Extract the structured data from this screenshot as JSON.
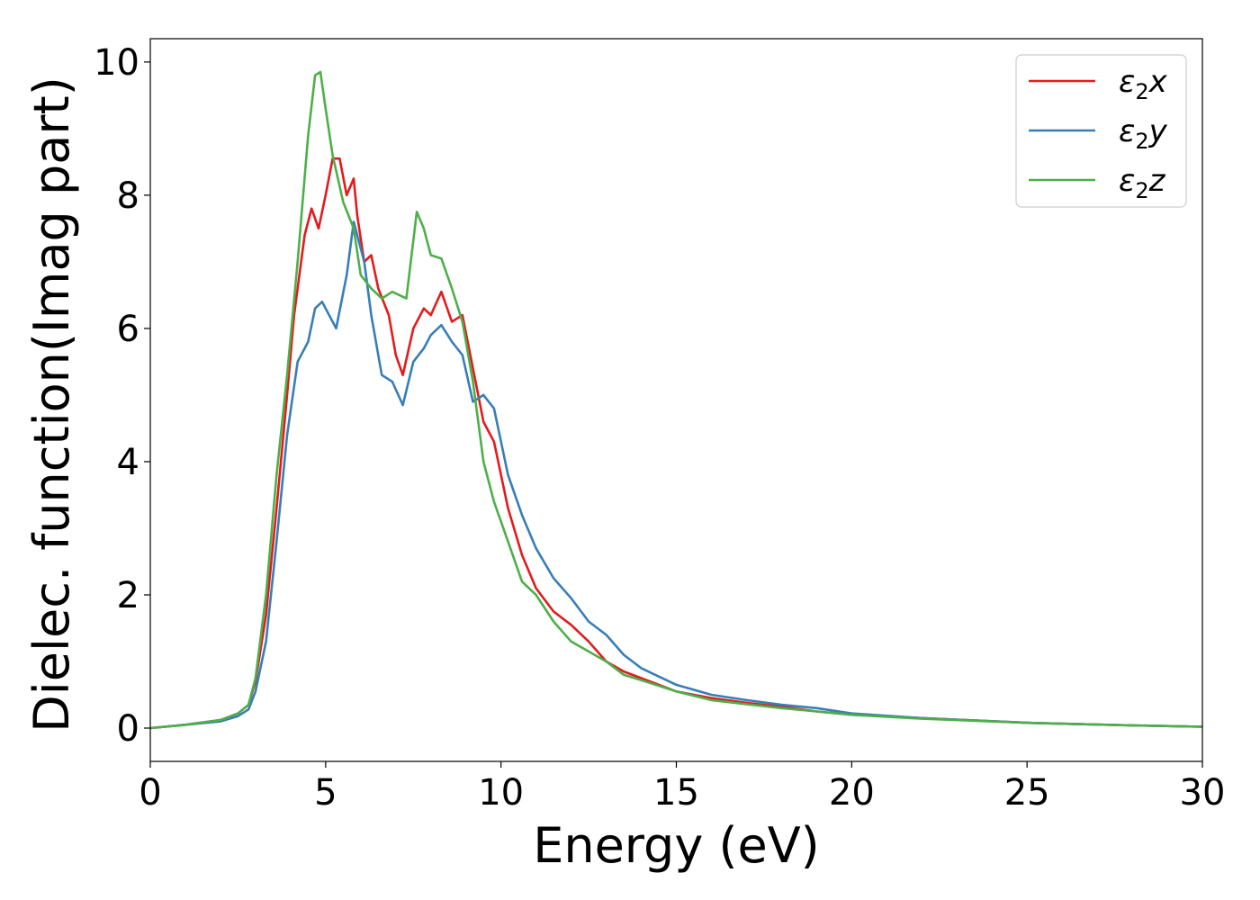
{
  "chart_data": {
    "type": "line",
    "title": "",
    "xlabel": "Energy (eV)",
    "ylabel": "Dielec. function(Imag part)",
    "xlim": [
      0,
      30
    ],
    "ylim": [
      -0.5,
      10.35
    ],
    "xticks": [
      0,
      5,
      10,
      15,
      20,
      25,
      30
    ],
    "yticks": [
      0,
      2,
      4,
      6,
      8,
      10
    ],
    "grid": false,
    "legend_position": "top-right",
    "series": [
      {
        "name": "ε2x",
        "legend": {
          "base": "ε",
          "sub": "2",
          "var": "x"
        },
        "color": "#e41a1c",
        "x": [
          0,
          1,
          2,
          2.5,
          2.8,
          3.0,
          3.3,
          3.6,
          3.9,
          4.1,
          4.4,
          4.6,
          4.8,
          5.0,
          5.2,
          5.4,
          5.6,
          5.8,
          5.9,
          6.1,
          6.3,
          6.5,
          6.8,
          7.0,
          7.2,
          7.5,
          7.8,
          8.0,
          8.3,
          8.6,
          8.9,
          9.2,
          9.5,
          9.8,
          10.2,
          10.6,
          11.0,
          11.5,
          12.0,
          12.5,
          13.0,
          13.5,
          14.0,
          15.0,
          16.0,
          17.0,
          18.0,
          19.0,
          20.0,
          22.0,
          25.0,
          28.0,
          30.0
        ],
        "y": [
          0.0,
          0.05,
          0.12,
          0.22,
          0.35,
          0.7,
          1.7,
          3.3,
          5.0,
          6.2,
          7.4,
          7.8,
          7.5,
          8.0,
          8.55,
          8.55,
          8.0,
          8.25,
          7.7,
          7.0,
          7.1,
          6.6,
          6.2,
          5.6,
          5.3,
          6.0,
          6.3,
          6.2,
          6.55,
          6.1,
          6.2,
          5.4,
          4.6,
          4.3,
          3.3,
          2.6,
          2.1,
          1.75,
          1.55,
          1.3,
          1.0,
          0.85,
          0.75,
          0.55,
          0.45,
          0.38,
          0.32,
          0.25,
          0.2,
          0.15,
          0.08,
          0.04,
          0.02
        ]
      },
      {
        "name": "ε2y",
        "legend": {
          "base": "ε",
          "sub": "2",
          "var": "y"
        },
        "color": "#377eb8",
        "x": [
          0,
          1,
          2,
          2.5,
          2.8,
          3.0,
          3.3,
          3.6,
          3.9,
          4.2,
          4.5,
          4.7,
          4.9,
          5.1,
          5.3,
          5.6,
          5.8,
          5.9,
          6.1,
          6.3,
          6.6,
          6.9,
          7.2,
          7.5,
          7.8,
          8.0,
          8.3,
          8.6,
          8.9,
          9.2,
          9.5,
          9.8,
          10.2,
          10.6,
          11.0,
          11.5,
          12.0,
          12.5,
          13.0,
          13.5,
          14.0,
          15.0,
          16.0,
          17.0,
          18.0,
          19.0,
          20.0,
          22.0,
          25.0,
          28.0,
          30.0
        ],
        "y": [
          0.0,
          0.05,
          0.1,
          0.18,
          0.28,
          0.55,
          1.3,
          2.8,
          4.4,
          5.5,
          5.8,
          6.3,
          6.4,
          6.2,
          6.0,
          6.8,
          7.6,
          7.4,
          7.0,
          6.2,
          5.3,
          5.2,
          4.85,
          5.5,
          5.7,
          5.9,
          6.05,
          5.8,
          5.6,
          4.9,
          5.0,
          4.8,
          3.8,
          3.2,
          2.7,
          2.25,
          1.95,
          1.6,
          1.4,
          1.1,
          0.9,
          0.65,
          0.5,
          0.42,
          0.35,
          0.3,
          0.22,
          0.15,
          0.08,
          0.04,
          0.02
        ]
      },
      {
        "name": "ε2z",
        "legend": {
          "base": "ε",
          "sub": "2",
          "var": "z"
        },
        "color": "#4daf4a",
        "x": [
          0,
          1,
          2,
          2.5,
          2.8,
          3.0,
          3.3,
          3.6,
          3.9,
          4.2,
          4.5,
          4.7,
          4.85,
          5.0,
          5.2,
          5.5,
          5.8,
          6.0,
          6.3,
          6.6,
          6.9,
          7.1,
          7.3,
          7.6,
          7.8,
          8.0,
          8.3,
          8.6,
          8.9,
          9.2,
          9.5,
          9.8,
          10.2,
          10.6,
          11.0,
          11.5,
          12.0,
          12.5,
          13.0,
          13.5,
          14.0,
          15.0,
          16.0,
          17.0,
          18.0,
          19.0,
          20.0,
          22.0,
          25.0,
          28.0,
          30.0
        ],
        "y": [
          0.0,
          0.05,
          0.12,
          0.22,
          0.35,
          0.75,
          2.0,
          3.8,
          5.3,
          7.0,
          8.9,
          9.8,
          9.85,
          9.3,
          8.6,
          7.9,
          7.5,
          6.8,
          6.6,
          6.45,
          6.55,
          6.5,
          6.45,
          7.75,
          7.5,
          7.1,
          7.05,
          6.6,
          6.1,
          5.2,
          4.0,
          3.4,
          2.8,
          2.2,
          2.0,
          1.6,
          1.3,
          1.15,
          1.0,
          0.8,
          0.72,
          0.55,
          0.42,
          0.36,
          0.3,
          0.25,
          0.2,
          0.14,
          0.08,
          0.04,
          0.02
        ]
      }
    ]
  }
}
